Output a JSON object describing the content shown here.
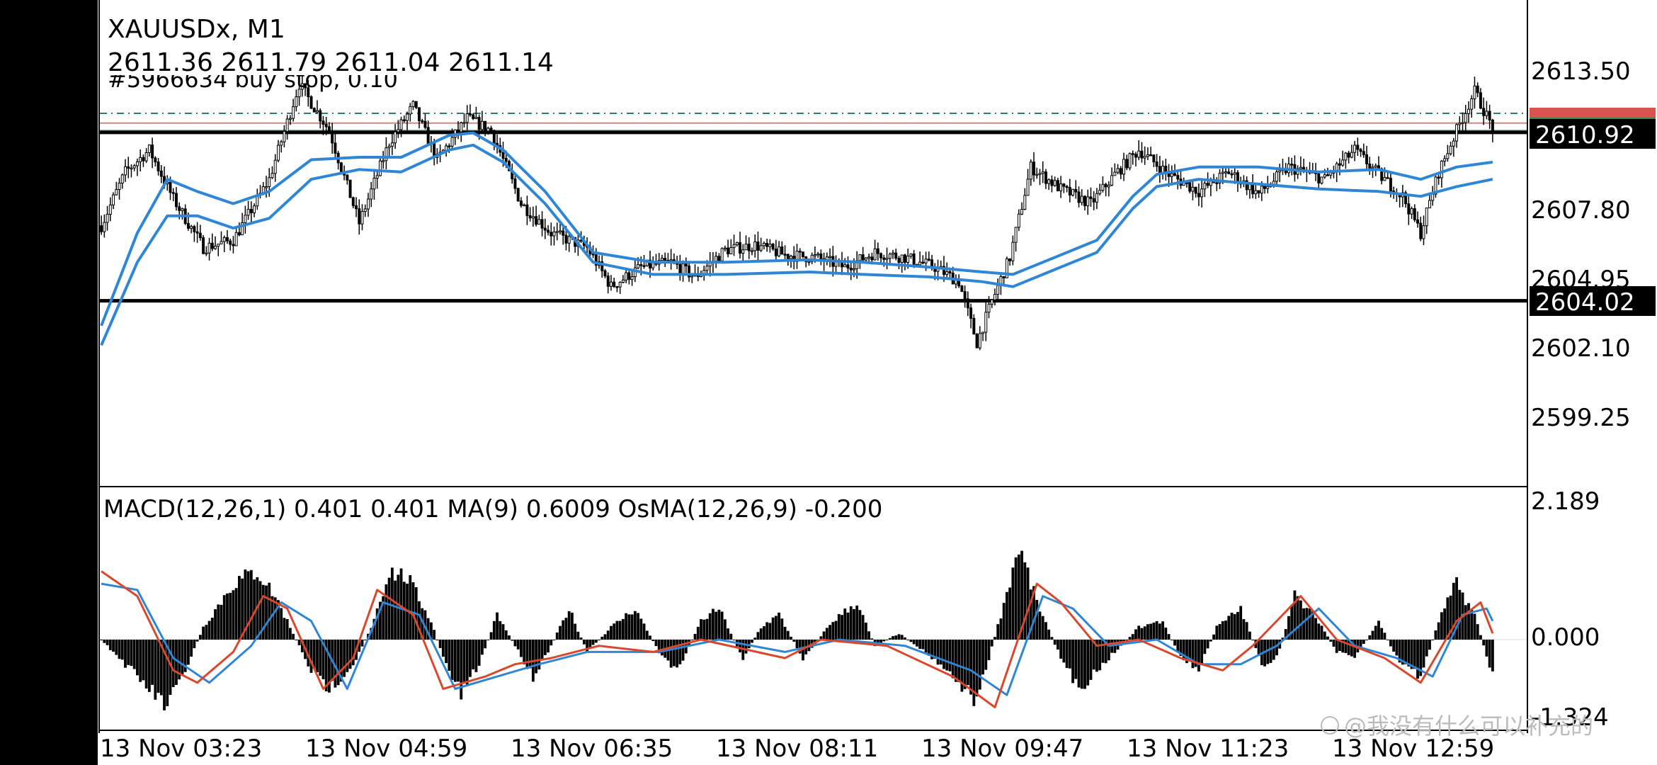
{
  "symbol": "XAUUSDx, M1",
  "ohlc": "2611.36 2611.79 2611.04 2611.14",
  "order_label": "#5966634 buy stop, 0.10",
  "watermark": "@我没有什么可以补充的",
  "colors": {
    "background": "#ffffff",
    "candle": "#000000",
    "ma_lines": "#2f86d4",
    "macd_line": "#d9482b",
    "signal_line": "#2f86d4",
    "histogram": "#000000",
    "order_line": "#2a7d74",
    "level_line": "#000000"
  },
  "price_axis": {
    "ticks": [
      "2613.50",
      "2607.80",
      "2604.95",
      "2602.10",
      "2599.25"
    ],
    "current_price_label": "2610.92",
    "level_label": "2604.02",
    "hidden_tag_color": "#d9534f",
    "hidden_tag_color2": "#2e8b57"
  },
  "macd_axis": {
    "ticks": [
      "2.189",
      "0.000",
      "-1.324"
    ]
  },
  "macd_header": "MACD(12,26,1) 0.401 0.401 MA(9) 0.6009 OsMA(12,26,9) -0.200",
  "time_axis": [
    "13 Nov 03:23",
    "13 Nov 04:59",
    "13 Nov 06:35",
    "13 Nov 08:11",
    "13 Nov 09:47",
    "13 Nov 11:23",
    "13 Nov 12:59"
  ],
  "chart_data": [
    {
      "type": "line",
      "title": "XAUUSDx, M1",
      "x": [
        "13 Nov 03:23",
        "13 Nov 04:59",
        "13 Nov 06:35",
        "13 Nov 08:11",
        "13 Nov 09:47",
        "13 Nov 11:23",
        "13 Nov 12:59"
      ],
      "ylim": [
        2597.5,
        2615.3
      ],
      "price_path": [
        [
          0,
          2607.1
        ],
        [
          8,
          2609.3
        ],
        [
          16,
          2610.2
        ],
        [
          24,
          2608.2
        ],
        [
          34,
          2606.2
        ],
        [
          44,
          2606.5
        ],
        [
          56,
          2609.0
        ],
        [
          66,
          2612.9
        ],
        [
          76,
          2611.0
        ],
        [
          86,
          2607.2
        ],
        [
          96,
          2610.5
        ],
        [
          104,
          2612.0
        ],
        [
          112,
          2609.8
        ],
        [
          122,
          2611.5
        ],
        [
          130,
          2611.0
        ],
        [
          140,
          2608.0
        ],
        [
          150,
          2606.8
        ],
        [
          162,
          2606.2
        ],
        [
          170,
          2604.6
        ],
        [
          180,
          2605.4
        ],
        [
          190,
          2605.6
        ],
        [
          198,
          2605.0
        ],
        [
          208,
          2606.1
        ],
        [
          218,
          2606.3
        ],
        [
          228,
          2605.9
        ],
        [
          238,
          2605.8
        ],
        [
          248,
          2605.4
        ],
        [
          258,
          2606.0
        ],
        [
          268,
          2605.8
        ],
        [
          278,
          2605.4
        ],
        [
          286,
          2604.8
        ],
        [
          292,
          2602.3
        ],
        [
          297,
          2604.0
        ],
        [
          303,
          2605.8
        ],
        [
          310,
          2609.5
        ],
        [
          320,
          2608.6
        ],
        [
          330,
          2608.0
        ],
        [
          338,
          2609.2
        ],
        [
          346,
          2610.2
        ],
        [
          356,
          2609.2
        ],
        [
          366,
          2608.5
        ],
        [
          376,
          2609.3
        ],
        [
          386,
          2608.4
        ],
        [
          396,
          2609.5
        ],
        [
          408,
          2609.0
        ],
        [
          418,
          2610.2
        ],
        [
          426,
          2609.2
        ],
        [
          434,
          2608.3
        ],
        [
          440,
          2606.8
        ],
        [
          446,
          2609.3
        ],
        [
          452,
          2611.0
        ],
        [
          458,
          2612.6
        ],
        [
          464,
          2611.1
        ]
      ],
      "ma_upper": [
        [
          0,
          2603.0
        ],
        [
          12,
          2606.8
        ],
        [
          22,
          2609.0
        ],
        [
          32,
          2608.5
        ],
        [
          44,
          2608.0
        ],
        [
          56,
          2608.5
        ],
        [
          70,
          2609.8
        ],
        [
          86,
          2609.9
        ],
        [
          100,
          2609.9
        ],
        [
          116,
          2610.8
        ],
        [
          124,
          2610.9
        ],
        [
          134,
          2610.2
        ],
        [
          148,
          2608.5
        ],
        [
          164,
          2606.0
        ],
        [
          184,
          2605.6
        ],
        [
          208,
          2605.6
        ],
        [
          236,
          2605.7
        ],
        [
          254,
          2605.6
        ],
        [
          276,
          2605.4
        ],
        [
          294,
          2605.2
        ],
        [
          304,
          2605.1
        ],
        [
          318,
          2605.8
        ],
        [
          332,
          2606.5
        ],
        [
          344,
          2608.3
        ],
        [
          352,
          2609.2
        ],
        [
          366,
          2609.5
        ],
        [
          386,
          2609.5
        ],
        [
          406,
          2609.3
        ],
        [
          426,
          2609.4
        ],
        [
          440,
          2609.0
        ],
        [
          452,
          2609.5
        ],
        [
          464,
          2609.7
        ]
      ],
      "ma_lower": [
        [
          0,
          2602.2
        ],
        [
          12,
          2605.6
        ],
        [
          22,
          2607.5
        ],
        [
          32,
          2607.5
        ],
        [
          44,
          2607.0
        ],
        [
          56,
          2607.4
        ],
        [
          70,
          2609.0
        ],
        [
          86,
          2609.4
        ],
        [
          100,
          2609.3
        ],
        [
          116,
          2610.2
        ],
        [
          124,
          2610.4
        ],
        [
          134,
          2609.7
        ],
        [
          148,
          2608.0
        ],
        [
          164,
          2605.6
        ],
        [
          184,
          2605.1
        ],
        [
          208,
          2605.1
        ],
        [
          236,
          2605.2
        ],
        [
          254,
          2605.1
        ],
        [
          276,
          2605.0
        ],
        [
          294,
          2604.8
        ],
        [
          304,
          2604.6
        ],
        [
          318,
          2605.3
        ],
        [
          332,
          2606.0
        ],
        [
          344,
          2607.8
        ],
        [
          352,
          2608.7
        ],
        [
          366,
          2609.0
        ],
        [
          386,
          2608.8
        ],
        [
          406,
          2608.6
        ],
        [
          426,
          2608.5
        ],
        [
          440,
          2608.3
        ],
        [
          452,
          2608.7
        ],
        [
          464,
          2609.0
        ]
      ],
      "horizontal_levels": [
        2610.92,
        2604.02
      ],
      "order_level": 2611.7,
      "price_tags": [
        2611.3,
        2611.0
      ]
    },
    {
      "type": "bar",
      "title": "MACD(12,26,1) 0.401 0.401 MA(9) 0.6009 OsMA(12,26,9) -0.200",
      "ylim": [
        -1.324,
        2.189
      ],
      "osma_path": [
        [
          0,
          0
        ],
        [
          6,
          -0.3
        ],
        [
          14,
          -0.7
        ],
        [
          22,
          -1.1
        ],
        [
          28,
          -0.5
        ],
        [
          34,
          0.2
        ],
        [
          44,
          0.9
        ],
        [
          52,
          1.1
        ],
        [
          58,
          0.7
        ],
        [
          64,
          0.1
        ],
        [
          70,
          -0.5
        ],
        [
          76,
          -0.8
        ],
        [
          84,
          -0.4
        ],
        [
          90,
          0.2
        ],
        [
          96,
          1.1
        ],
        [
          102,
          1.0
        ],
        [
          110,
          0.3
        ],
        [
          114,
          -0.3
        ],
        [
          120,
          -0.9
        ],
        [
          126,
          -0.4
        ],
        [
          132,
          0.4
        ],
        [
          138,
          -0.1
        ],
        [
          144,
          -0.6
        ],
        [
          150,
          -0.1
        ],
        [
          156,
          0.5
        ],
        [
          162,
          -0.2
        ],
        [
          170,
          0.2
        ],
        [
          178,
          0.5
        ],
        [
          186,
          -0.2
        ],
        [
          192,
          -0.5
        ],
        [
          200,
          0.3
        ],
        [
          206,
          0.5
        ],
        [
          214,
          -0.3
        ],
        [
          220,
          0.2
        ],
        [
          226,
          0.4
        ],
        [
          234,
          -0.3
        ],
        [
          244,
          0.3
        ],
        [
          252,
          0.6
        ],
        [
          258,
          -0.1
        ],
        [
          266,
          0.1
        ],
        [
          272,
          -0.1
        ],
        [
          280,
          -0.4
        ],
        [
          286,
          -0.7
        ],
        [
          292,
          -1.0
        ],
        [
          300,
          0.4
        ],
        [
          306,
          1.5
        ],
        [
          312,
          0.6
        ],
        [
          320,
          -0.3
        ],
        [
          326,
          -0.8
        ],
        [
          332,
          -0.5
        ],
        [
          338,
          -0.2
        ],
        [
          346,
          0.2
        ],
        [
          354,
          0.3
        ],
        [
          360,
          -0.3
        ],
        [
          366,
          -0.5
        ],
        [
          372,
          0.2
        ],
        [
          380,
          0.5
        ],
        [
          388,
          -0.5
        ],
        [
          392,
          -0.3
        ],
        [
          398,
          0.7
        ],
        [
          406,
          0.3
        ],
        [
          412,
          -0.2
        ],
        [
          418,
          -0.3
        ],
        [
          426,
          0.3
        ],
        [
          432,
          -0.3
        ],
        [
          440,
          -0.6
        ],
        [
          446,
          0.3
        ],
        [
          452,
          0.9
        ],
        [
          458,
          0.4
        ],
        [
          464,
          -0.6
        ]
      ],
      "macd_path": [
        [
          0,
          1.1
        ],
        [
          12,
          0.7
        ],
        [
          24,
          -0.5
        ],
        [
          32,
          -0.7
        ],
        [
          44,
          -0.2
        ],
        [
          54,
          0.7
        ],
        [
          62,
          0.5
        ],
        [
          74,
          -0.8
        ],
        [
          84,
          -0.3
        ],
        [
          92,
          0.8
        ],
        [
          104,
          0.4
        ],
        [
          114,
          -0.8
        ],
        [
          128,
          -0.6
        ],
        [
          138,
          -0.4
        ],
        [
          150,
          -0.3
        ],
        [
          166,
          -0.1
        ],
        [
          184,
          -0.2
        ],
        [
          200,
          0.0
        ],
        [
          228,
          -0.3
        ],
        [
          240,
          0.0
        ],
        [
          262,
          -0.1
        ],
        [
          284,
          -0.6
        ],
        [
          298,
          -1.1
        ],
        [
          312,
          0.9
        ],
        [
          320,
          0.6
        ],
        [
          332,
          -0.1
        ],
        [
          346,
          0.0
        ],
        [
          360,
          -0.3
        ],
        [
          374,
          -0.5
        ],
        [
          384,
          -0.1
        ],
        [
          400,
          0.7
        ],
        [
          412,
          0.0
        ],
        [
          428,
          -0.3
        ],
        [
          440,
          -0.7
        ],
        [
          452,
          0.3
        ],
        [
          460,
          0.6
        ],
        [
          464,
          0.1
        ]
      ],
      "signal_path": [
        [
          0,
          0.9
        ],
        [
          12,
          0.8
        ],
        [
          24,
          -0.3
        ],
        [
          36,
          -0.7
        ],
        [
          50,
          -0.1
        ],
        [
          60,
          0.6
        ],
        [
          70,
          0.3
        ],
        [
          82,
          -0.8
        ],
        [
          94,
          0.6
        ],
        [
          106,
          0.4
        ],
        [
          118,
          -0.8
        ],
        [
          132,
          -0.6
        ],
        [
          146,
          -0.4
        ],
        [
          162,
          -0.2
        ],
        [
          186,
          -0.2
        ],
        [
          206,
          0.0
        ],
        [
          228,
          -0.2
        ],
        [
          246,
          0.0
        ],
        [
          268,
          -0.1
        ],
        [
          290,
          -0.5
        ],
        [
          302,
          -0.9
        ],
        [
          314,
          0.7
        ],
        [
          324,
          0.5
        ],
        [
          336,
          -0.1
        ],
        [
          352,
          0.0
        ],
        [
          366,
          -0.4
        ],
        [
          380,
          -0.4
        ],
        [
          392,
          -0.1
        ],
        [
          406,
          0.5
        ],
        [
          418,
          -0.1
        ],
        [
          432,
          -0.3
        ],
        [
          444,
          -0.6
        ],
        [
          454,
          0.4
        ],
        [
          462,
          0.5
        ],
        [
          464,
          0.3
        ]
      ]
    }
  ]
}
